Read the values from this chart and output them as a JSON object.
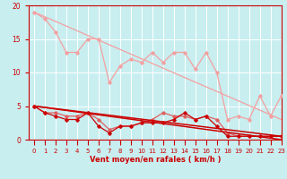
{
  "background_color": "#c8eef0",
  "grid_color": "#ffffff",
  "xlabel": "Vent moyen/en rafales ( km/h )",
  "xlabel_color": "#cc0000",
  "tick_color": "#cc0000",
  "xlim": [
    -0.5,
    23
  ],
  "ylim": [
    0,
    20
  ],
  "yticks": [
    0,
    5,
    10,
    15,
    20
  ],
  "xticks": [
    0,
    1,
    2,
    3,
    4,
    5,
    6,
    7,
    8,
    9,
    10,
    11,
    12,
    13,
    14,
    15,
    16,
    17,
    18,
    19,
    20,
    21,
    22,
    23
  ],
  "line1_x": [
    0,
    1,
    2,
    3,
    4,
    5,
    6,
    7,
    8,
    9,
    10,
    11,
    12,
    13,
    14,
    15,
    16,
    17,
    18,
    19,
    20,
    21,
    22,
    23
  ],
  "line1_y": [
    19,
    18,
    16,
    13,
    13,
    15,
    15,
    8.5,
    11,
    12,
    11.5,
    13,
    11.5,
    13,
    13,
    10.5,
    13,
    10,
    3,
    3.5,
    3,
    6.5,
    3.5,
    6.5
  ],
  "line2_x": [
    0,
    23
  ],
  "line2_y": [
    19,
    3
  ],
  "line3_x": [
    0,
    1,
    2,
    3,
    4,
    5,
    6,
    7,
    8,
    9,
    10,
    11,
    12,
    13,
    14,
    15,
    16,
    17,
    18,
    19,
    20,
    21,
    22,
    23
  ],
  "line3_y": [
    5,
    4,
    4,
    3.5,
    3.5,
    4,
    3,
    1.5,
    2,
    2,
    2.5,
    3,
    4,
    3.5,
    3.5,
    3,
    3.5,
    3,
    1,
    0.5,
    0.5,
    0.5,
    0.5,
    0.5
  ],
  "line4_x": [
    0,
    23
  ],
  "line4_y": [
    5,
    0.5
  ],
  "line5_x": [
    0,
    1,
    2,
    3,
    4,
    5,
    6,
    7,
    8,
    9,
    10,
    11,
    12,
    13,
    14,
    15,
    16,
    17,
    18,
    19,
    20,
    21,
    22,
    23
  ],
  "line5_y": [
    5,
    4,
    3.5,
    3,
    3,
    4,
    2,
    1,
    2,
    2,
    2.5,
    2.5,
    2.5,
    3,
    4,
    3,
    3.5,
    2,
    0.5,
    0.5,
    0.5,
    0.5,
    0.5,
    0.5
  ],
  "line6_x": [
    0,
    23
  ],
  "line6_y": [
    5,
    0
  ],
  "light_pink": "#f4a0a0",
  "dark_red": "#cc0000",
  "medium_red": "#e06060",
  "xlabel_fontsize": 6.0,
  "xlabel_fontweight": "bold",
  "tick_fontsize_x": 5.0,
  "tick_fontsize_y": 5.5
}
